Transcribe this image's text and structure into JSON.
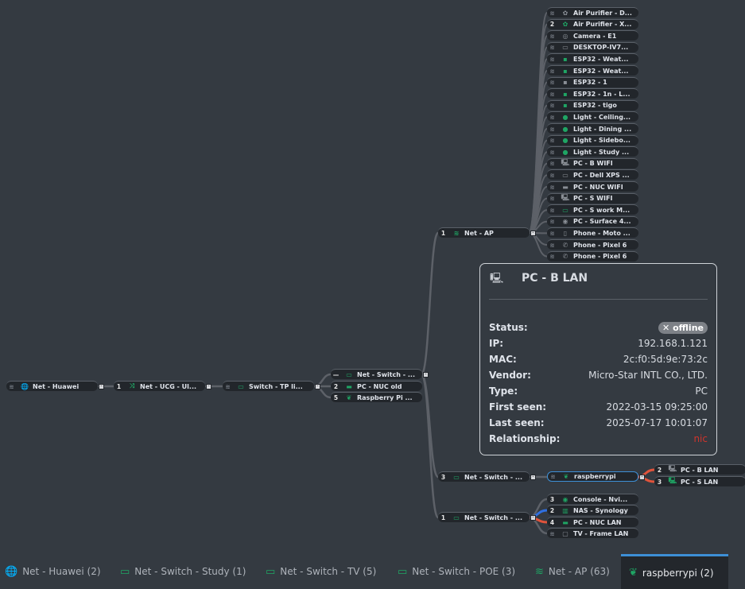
{
  "colors": {
    "background": "#343a41",
    "node": "#22262b",
    "accent": "#3d8fd6",
    "online_icon": "#1fa564",
    "offline_icon": "#8a8f96",
    "link_red": "#e0533b",
    "link_blue": "#2f6fe0"
  },
  "nodes": {
    "huawei": {
      "label": "Net - Huawei",
      "badge": "",
      "icon": "globe-icon",
      "online": true
    },
    "ucg": {
      "label": "Net - UCG - Ul...",
      "badge": "1",
      "icon": "shuffle-icon",
      "online": true
    },
    "tp": {
      "label": "Switch - TP li...",
      "badge": "",
      "icon": "switch-icon",
      "online": true
    },
    "sw_a": {
      "label": "Net - Switch - ...",
      "badge": "—",
      "icon": "switch-icon",
      "online": true
    },
    "nuc_old": {
      "label": "PC - NUC old",
      "badge": "2",
      "icon": "nuc-icon",
      "online": true
    },
    "rpi4": {
      "label": "Raspberry Pi ...",
      "badge": "5",
      "icon": "raspberry-icon",
      "online": true
    },
    "ap": {
      "label": "Net - AP",
      "badge": "1",
      "icon": "wifi-icon",
      "online": true
    },
    "sw_b": {
      "label": "Net - Switch - ...",
      "badge": "3",
      "icon": "switch-icon",
      "online": true
    },
    "sw_c": {
      "label": "Net - Switch - ...",
      "badge": "1",
      "icon": "switch-icon",
      "online": true
    },
    "raspberrypi": {
      "label": "raspberrypi",
      "badge": "",
      "icon": "raspberry-icon",
      "online": true
    },
    "pc_b_lan": {
      "label": "PC - B LAN",
      "badge": "2",
      "icon": "pc-tower-icon",
      "online": false
    },
    "pc_s_lan": {
      "label": "PC - S LAN",
      "badge": "3",
      "icon": "pc-tower-icon",
      "online": true
    },
    "console": {
      "label": "Console - Nvi...",
      "badge": "3",
      "icon": "gamepad-icon",
      "online": true
    },
    "nas": {
      "label": "NAS - Synology",
      "badge": "2",
      "icon": "nas-icon",
      "online": true
    },
    "nuc_lan": {
      "label": "PC - NUC LAN",
      "badge": "4",
      "icon": "nuc-icon",
      "online": true
    },
    "tv": {
      "label": "TV - Frame LAN",
      "badge": "",
      "icon": "tv-icon",
      "online": false
    }
  },
  "ap_clients": [
    {
      "label": "Air Purifier - D...",
      "badge": "",
      "icon": "fan-icon",
      "online": false
    },
    {
      "label": "Air Purifier - X...",
      "badge": "2",
      "icon": "fan-icon",
      "online": true
    },
    {
      "label": "Camera - E1",
      "badge": "",
      "icon": "camera-icon",
      "online": false
    },
    {
      "label": "DESKTOP-IV7...",
      "badge": "",
      "icon": "monitor-icon",
      "online": false
    },
    {
      "label": "ESP32 - Weat...",
      "badge": "",
      "icon": "chip-icon",
      "online": true
    },
    {
      "label": "ESP32 - Weat...",
      "badge": "",
      "icon": "chip-icon",
      "online": true
    },
    {
      "label": "ESP32 - 1",
      "badge": "",
      "icon": "chip-icon",
      "online": false
    },
    {
      "label": "ESP32 - 1n - L...",
      "badge": "",
      "icon": "chip-icon",
      "online": true
    },
    {
      "label": "ESP32 - tigo",
      "badge": "",
      "icon": "chip-icon",
      "online": true
    },
    {
      "label": "Light - Ceiling...",
      "badge": "",
      "icon": "bulb-icon",
      "online": true
    },
    {
      "label": "Light - Dining ...",
      "badge": "",
      "icon": "bulb-icon",
      "online": true
    },
    {
      "label": "Light - Sidebo...",
      "badge": "",
      "icon": "bulb-icon",
      "online": true
    },
    {
      "label": "Light - Study ...",
      "badge": "",
      "icon": "bulb-icon",
      "online": true
    },
    {
      "label": "PC - B WIFI",
      "badge": "",
      "icon": "pc-tower-icon",
      "online": false
    },
    {
      "label": "PC - Dell XPS ...",
      "badge": "",
      "icon": "monitor-icon",
      "online": false
    },
    {
      "label": "PC - NUC WIFI",
      "badge": "",
      "icon": "nuc-icon",
      "online": false
    },
    {
      "label": "PC - S WIFI",
      "badge": "",
      "icon": "pc-tower-icon",
      "online": false
    },
    {
      "label": "PC - S work M...",
      "badge": "",
      "icon": "monitor-icon",
      "online": true
    },
    {
      "label": "PC - Surface 4...",
      "badge": "",
      "icon": "gamepad-icon",
      "online": false
    },
    {
      "label": "Phone - Moto ...",
      "badge": "",
      "icon": "phone-icon",
      "online": false
    },
    {
      "label": "Phone - Pixel 6",
      "badge": "",
      "icon": "phone-handset-icon",
      "online": false
    },
    {
      "label": "Phone - Pixel 6",
      "badge": "",
      "icon": "phone-handset-icon",
      "online": false
    }
  ],
  "tooltip": {
    "title": "PC - B LAN",
    "icon": "pc-tower-icon",
    "rows": [
      {
        "key": "Status:",
        "value": "✕ offline"
      },
      {
        "key": "IP:",
        "value": "192.168.1.121"
      },
      {
        "key": "MAC:",
        "value": "2c:f0:5d:9e:73:2c"
      },
      {
        "key": "Vendor:",
        "value": "Micro-Star INTL CO., LTD."
      },
      {
        "key": "Type:",
        "value": "PC"
      },
      {
        "key": "First seen:",
        "value": "2022-03-15 09:25:00"
      },
      {
        "key": "Last seen:",
        "value": "2025-07-17 10:01:07"
      },
      {
        "key": "Relationship:",
        "value": "nic"
      }
    ]
  },
  "tabs": [
    {
      "label": "Net - Huawei (2)",
      "icon": "globe-icon",
      "active": false
    },
    {
      "label": "Net - Switch - Study (1)",
      "icon": "switch-icon",
      "active": false
    },
    {
      "label": "Net - Switch - TV (5)",
      "icon": "switch-icon",
      "active": false
    },
    {
      "label": "Net - Switch - POE (3)",
      "icon": "switch-icon",
      "active": false
    },
    {
      "label": "Net - AP (63)",
      "icon": "wifi-icon",
      "active": false
    },
    {
      "label": "raspberrypi (2)",
      "icon": "raspberry-icon",
      "active": true
    }
  ]
}
